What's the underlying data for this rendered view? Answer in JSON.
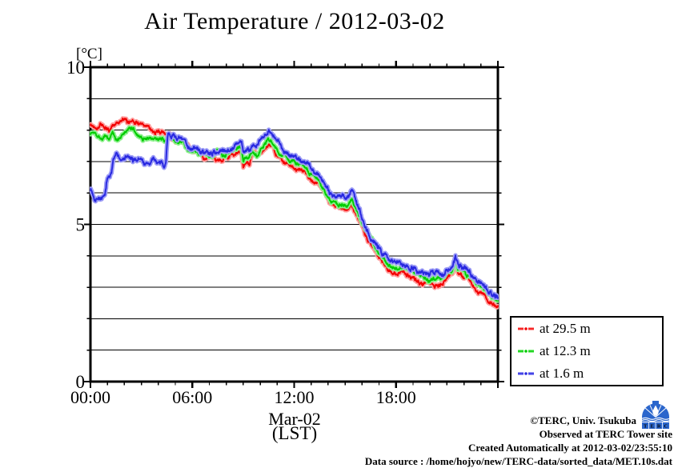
{
  "title": "Air Temperature / 2012-03-02",
  "y_axis": {
    "unit": "[°C]",
    "tick_labels": [
      "0",
      "5",
      "10"
    ]
  },
  "x_axis": {
    "tick_labels": [
      "00:00",
      "06:00",
      "12:00",
      "18:00"
    ],
    "date_label": "Mar-02",
    "tz_label": "(LST)"
  },
  "legend": {
    "items": [
      {
        "label": "at 29.5 m",
        "color": "#ff0000",
        "halo": "#ff9e9e"
      },
      {
        "label": "at 12.3 m",
        "color": "#00cc00",
        "halo": "#8ef08e"
      },
      {
        "label": "at 1.6 m",
        "color": "#2222dd",
        "halo": "#9c9cf6"
      }
    ]
  },
  "footer": {
    "line1": "©TERC, Univ. Tsukuba",
    "line2": "Observed at TERC Tower site",
    "line3": "Created Automatically at 2012-03-02/23:55:10",
    "line4": "Data source : /home/hojyo/new/TERC-data/sorted_data/MET.10s.dat",
    "logo_text": "TERC",
    "logo_color": "#2b66cc"
  },
  "chart_data": {
    "type": "line",
    "title": "Air Temperature / 2012-03-02",
    "xlabel": "Mar-02 (LST)",
    "ylabel": "[°C]",
    "xlim_hours": [
      0,
      24
    ],
    "ylim": [
      0,
      10
    ],
    "grid": "horizontal lines every 1 °C, frame on all sides, outward ticks (hourly on x, every 1 °C on y)",
    "legend_position": "outside lower right",
    "x_ticks": [
      {
        "h": 0,
        "label": "00:00"
      },
      {
        "h": 6,
        "label": "06:00"
      },
      {
        "h": 12,
        "label": "12:00"
      },
      {
        "h": 18,
        "label": "18:00"
      }
    ],
    "y_ticks": [
      {
        "v": 0,
        "label": "0"
      },
      {
        "v": 5,
        "label": "5"
      },
      {
        "v": 10,
        "label": "10"
      }
    ],
    "series": [
      {
        "name": "at 29.5 m",
        "color": "#f20000",
        "halo": "#ff9e9e",
        "seed": 42,
        "noise": 1.0,
        "keyframes": [
          [
            0,
            8.15
          ],
          [
            0.3,
            8.1
          ],
          [
            0.6,
            8.2
          ],
          [
            0.9,
            8.05
          ],
          [
            1.1,
            7.95
          ],
          [
            1.3,
            8.15
          ],
          [
            1.6,
            8.28
          ],
          [
            1.9,
            8.3
          ],
          [
            2.2,
            8.22
          ],
          [
            2.5,
            8.35
          ],
          [
            2.8,
            8.3
          ],
          [
            3.1,
            8.12
          ],
          [
            3.4,
            8.1
          ],
          [
            3.7,
            8.0
          ],
          [
            4.0,
            7.95
          ],
          [
            4.3,
            7.88
          ],
          [
            4.6,
            7.85
          ],
          [
            5.0,
            7.7
          ],
          [
            5.4,
            7.6
          ],
          [
            5.8,
            7.4
          ],
          [
            6.2,
            7.25
          ],
          [
            6.6,
            7.12
          ],
          [
            7.0,
            7.1
          ],
          [
            7.4,
            7.1
          ],
          [
            7.8,
            7.15
          ],
          [
            8.2,
            7.2
          ],
          [
            8.6,
            7.3
          ],
          [
            8.9,
            7.3
          ],
          [
            9.0,
            6.82
          ],
          [
            9.2,
            6.95
          ],
          [
            9.35,
            6.9
          ],
          [
            9.55,
            7.25
          ],
          [
            9.8,
            7.18
          ],
          [
            10.0,
            7.25
          ],
          [
            10.2,
            7.35
          ],
          [
            10.5,
            7.5
          ],
          [
            10.7,
            7.4
          ],
          [
            11.0,
            7.2
          ],
          [
            11.4,
            7.0
          ],
          [
            11.8,
            6.9
          ],
          [
            12.2,
            6.75
          ],
          [
            12.6,
            6.65
          ],
          [
            13.0,
            6.5
          ],
          [
            13.4,
            6.3
          ],
          [
            13.8,
            6.0
          ],
          [
            14.1,
            5.7
          ],
          [
            14.4,
            5.6
          ],
          [
            14.8,
            5.55
          ],
          [
            15.2,
            5.5
          ],
          [
            15.4,
            5.65
          ],
          [
            15.6,
            5.45
          ],
          [
            15.8,
            5.2
          ],
          [
            16.1,
            4.8
          ],
          [
            16.5,
            4.35
          ],
          [
            16.9,
            4.0
          ],
          [
            17.3,
            3.7
          ],
          [
            17.6,
            3.55
          ],
          [
            18.0,
            3.5
          ],
          [
            18.4,
            3.5
          ],
          [
            18.8,
            3.4
          ],
          [
            19.2,
            3.25
          ],
          [
            19.6,
            3.1
          ],
          [
            20.0,
            3.05
          ],
          [
            20.4,
            3.1
          ],
          [
            20.8,
            3.2
          ],
          [
            21.1,
            3.3
          ],
          [
            21.35,
            3.4
          ],
          [
            21.5,
            3.8
          ],
          [
            21.65,
            3.4
          ],
          [
            21.85,
            3.45
          ],
          [
            22.1,
            3.3
          ],
          [
            22.4,
            3.15
          ],
          [
            22.8,
            2.95
          ],
          [
            23.2,
            2.75
          ],
          [
            23.6,
            2.55
          ],
          [
            24,
            2.4
          ]
        ]
      },
      {
        "name": "at 12.3 m",
        "color": "#00cc00",
        "halo": "#8ef08e",
        "seed": 1337,
        "noise": 1.0,
        "keyframes": [
          [
            0,
            7.9
          ],
          [
            0.3,
            7.95
          ],
          [
            0.6,
            7.85
          ],
          [
            0.9,
            7.8
          ],
          [
            1.1,
            7.7
          ],
          [
            1.3,
            7.9
          ],
          [
            1.6,
            7.62
          ],
          [
            1.9,
            7.8
          ],
          [
            2.2,
            7.95
          ],
          [
            2.5,
            8.05
          ],
          [
            2.8,
            7.9
          ],
          [
            3.1,
            7.8
          ],
          [
            3.4,
            7.76
          ],
          [
            3.7,
            7.75
          ],
          [
            4.0,
            7.7
          ],
          [
            4.3,
            7.7
          ],
          [
            4.6,
            7.75
          ],
          [
            5.0,
            7.65
          ],
          [
            5.4,
            7.55
          ],
          [
            5.8,
            7.4
          ],
          [
            6.2,
            7.3
          ],
          [
            6.6,
            7.2
          ],
          [
            7.0,
            7.15
          ],
          [
            7.4,
            7.2
          ],
          [
            7.8,
            7.25
          ],
          [
            8.2,
            7.3
          ],
          [
            8.6,
            7.4
          ],
          [
            8.9,
            7.4
          ],
          [
            9.0,
            7.0
          ],
          [
            9.2,
            7.1
          ],
          [
            9.35,
            7.08
          ],
          [
            9.55,
            7.35
          ],
          [
            9.8,
            7.33
          ],
          [
            10.0,
            7.45
          ],
          [
            10.2,
            7.55
          ],
          [
            10.5,
            7.75
          ],
          [
            10.7,
            7.6
          ],
          [
            11.0,
            7.4
          ],
          [
            11.4,
            7.2
          ],
          [
            11.8,
            7.05
          ],
          [
            12.2,
            6.9
          ],
          [
            12.6,
            6.8
          ],
          [
            13.0,
            6.65
          ],
          [
            13.4,
            6.45
          ],
          [
            13.8,
            6.15
          ],
          [
            14.1,
            5.85
          ],
          [
            14.4,
            5.75
          ],
          [
            14.8,
            5.7
          ],
          [
            15.2,
            5.65
          ],
          [
            15.4,
            5.8
          ],
          [
            15.6,
            5.6
          ],
          [
            15.8,
            5.35
          ],
          [
            16.1,
            4.95
          ],
          [
            16.5,
            4.5
          ],
          [
            16.9,
            4.15
          ],
          [
            17.3,
            3.85
          ],
          [
            17.6,
            3.72
          ],
          [
            18.0,
            3.68
          ],
          [
            18.4,
            3.65
          ],
          [
            18.8,
            3.55
          ],
          [
            19.2,
            3.42
          ],
          [
            19.6,
            3.3
          ],
          [
            20.0,
            3.25
          ],
          [
            20.4,
            3.3
          ],
          [
            20.8,
            3.38
          ],
          [
            21.1,
            3.45
          ],
          [
            21.35,
            3.55
          ],
          [
            21.5,
            3.95
          ],
          [
            21.65,
            3.55
          ],
          [
            21.85,
            3.6
          ],
          [
            22.1,
            3.45
          ],
          [
            22.4,
            3.3
          ],
          [
            22.8,
            3.1
          ],
          [
            23.2,
            2.9
          ],
          [
            23.6,
            2.72
          ],
          [
            24,
            2.55
          ]
        ]
      },
      {
        "name": "at 1.6 m",
        "color": "#2828e0",
        "halo": "#9c9cf6",
        "seed": 7,
        "noise": 1.25,
        "keyframes": [
          [
            0,
            6.15
          ],
          [
            0.15,
            5.95
          ],
          [
            0.3,
            5.85
          ],
          [
            0.5,
            5.92
          ],
          [
            0.7,
            5.85
          ],
          [
            0.85,
            5.8
          ],
          [
            0.95,
            6.3
          ],
          [
            1.1,
            6.5
          ],
          [
            1.25,
            6.6
          ],
          [
            1.35,
            7.15
          ],
          [
            1.5,
            7.3
          ],
          [
            1.7,
            7.1
          ],
          [
            1.9,
            7.0
          ],
          [
            2.1,
            7.15
          ],
          [
            2.3,
            7.1
          ],
          [
            2.5,
            6.95
          ],
          [
            2.7,
            7.05
          ],
          [
            2.9,
            7.1
          ],
          [
            3.1,
            7.0
          ],
          [
            3.3,
            6.9
          ],
          [
            3.5,
            6.95
          ],
          [
            3.7,
            7.05
          ],
          [
            3.9,
            7.0
          ],
          [
            4.1,
            6.9
          ],
          [
            4.3,
            6.85
          ],
          [
            4.45,
            7.0
          ],
          [
            4.55,
            7.95
          ],
          [
            4.7,
            7.9
          ],
          [
            5.0,
            7.8
          ],
          [
            5.4,
            7.65
          ],
          [
            5.8,
            7.5
          ],
          [
            6.2,
            7.4
          ],
          [
            6.6,
            7.3
          ],
          [
            7.0,
            7.25
          ],
          [
            7.4,
            7.3
          ],
          [
            7.8,
            7.35
          ],
          [
            8.2,
            7.45
          ],
          [
            8.6,
            7.55
          ],
          [
            8.9,
            7.55
          ],
          [
            9.0,
            7.3
          ],
          [
            9.2,
            7.35
          ],
          [
            9.35,
            7.3
          ],
          [
            9.55,
            7.5
          ],
          [
            9.8,
            7.5
          ],
          [
            10.0,
            7.6
          ],
          [
            10.2,
            7.7
          ],
          [
            10.45,
            8.05
          ],
          [
            10.55,
            8.1
          ],
          [
            10.7,
            7.85
          ],
          [
            11.0,
            7.6
          ],
          [
            11.4,
            7.4
          ],
          [
            11.8,
            7.25
          ],
          [
            12.2,
            7.1
          ],
          [
            12.6,
            7.0
          ],
          [
            13.0,
            6.8
          ],
          [
            13.4,
            6.6
          ],
          [
            13.8,
            6.3
          ],
          [
            14.1,
            6.05
          ],
          [
            14.4,
            5.95
          ],
          [
            14.8,
            5.9
          ],
          [
            15.2,
            5.85
          ],
          [
            15.4,
            6.05
          ],
          [
            15.6,
            5.8
          ],
          [
            15.8,
            5.5
          ],
          [
            16.1,
            5.1
          ],
          [
            16.5,
            4.65
          ],
          [
            16.9,
            4.3
          ],
          [
            17.3,
            4.0
          ],
          [
            17.6,
            3.9
          ],
          [
            18.0,
            3.85
          ],
          [
            18.4,
            3.8
          ],
          [
            18.8,
            3.7
          ],
          [
            19.2,
            3.6
          ],
          [
            19.6,
            3.48
          ],
          [
            20.0,
            3.42
          ],
          [
            20.4,
            3.45
          ],
          [
            20.8,
            3.5
          ],
          [
            21.1,
            3.58
          ],
          [
            21.35,
            3.65
          ],
          [
            21.5,
            3.9
          ],
          [
            21.65,
            3.65
          ],
          [
            21.85,
            3.68
          ],
          [
            22.1,
            3.6
          ],
          [
            22.4,
            3.45
          ],
          [
            22.8,
            3.25
          ],
          [
            23.2,
            3.05
          ],
          [
            23.6,
            2.85
          ],
          [
            24,
            2.7
          ]
        ]
      }
    ]
  }
}
